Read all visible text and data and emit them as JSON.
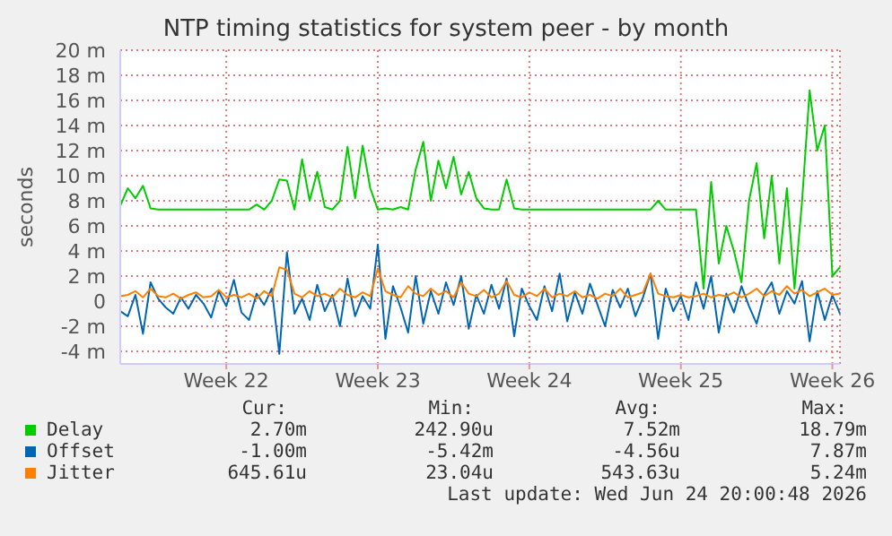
{
  "chart_data": {
    "type": "line",
    "title": "NTP timing statistics for system peer - by month",
    "ylabel": "seconds",
    "categories": [
      null,
      null,
      null,
      null,
      null,
      null,
      null,
      null,
      null,
      null,
      null,
      null,
      null,
      null,
      "Week 22",
      null,
      null,
      null,
      null,
      null,
      null,
      null,
      null,
      null,
      null,
      null,
      null,
      null,
      null,
      null,
      null,
      null,
      null,
      null,
      "Week 23",
      null,
      null,
      null,
      null,
      null,
      null,
      null,
      null,
      null,
      null,
      null,
      null,
      null,
      null,
      null,
      null,
      null,
      null,
      null,
      "Week 24",
      null,
      null,
      null,
      null,
      null,
      null,
      null,
      null,
      null,
      null,
      null,
      null,
      null,
      null,
      null,
      null,
      null,
      null,
      null,
      "Week 25",
      null,
      null,
      null,
      null,
      null,
      null,
      null,
      null,
      null,
      null,
      null,
      null,
      null,
      null,
      null,
      null,
      null,
      null,
      null,
      "Week 26",
      null
    ],
    "series": [
      {
        "name": "Delay",
        "color": "#00cc00",
        "values": [
          7.6,
          9.0,
          8.2,
          9.2,
          7.4,
          7.3,
          7.3,
          7.3,
          7.3,
          7.3,
          7.3,
          7.3,
          7.3,
          7.3,
          7.3,
          7.3,
          7.3,
          7.3,
          7.7,
          7.3,
          8.0,
          9.7,
          9.6,
          7.3,
          11.3,
          8.0,
          10.3,
          7.5,
          7.3,
          8.0,
          12.3,
          8.2,
          12.4,
          9.0,
          7.3,
          7.4,
          7.3,
          7.5,
          7.3,
          10.5,
          12.7,
          8.0,
          11.2,
          9.0,
          11.5,
          8.5,
          10.3,
          8.2,
          7.4,
          7.3,
          7.3,
          9.7,
          7.4,
          7.3,
          7.3,
          7.3,
          7.3,
          7.3,
          7.3,
          7.3,
          7.3,
          7.3,
          7.3,
          7.3,
          7.3,
          7.3,
          7.3,
          7.3,
          7.3,
          7.3,
          7.3,
          8.0,
          7.3,
          7.3,
          7.3,
          7.3,
          7.3,
          1.0,
          9.5,
          3.0,
          6.0,
          4.0,
          1.5,
          8.0,
          11.0,
          5.0,
          10.0,
          3.0,
          9.0,
          1.0,
          8.0,
          16.8,
          12.0,
          14.0,
          2.0,
          2.7
        ]
      },
      {
        "name": "Offset",
        "color": "#0066b3",
        "values": [
          -0.8,
          -1.2,
          0.5,
          -2.6,
          1.5,
          0.2,
          -0.5,
          -1.0,
          0.3,
          -0.6,
          0.5,
          -0.2,
          -1.3,
          0.8,
          -0.4,
          1.7,
          -0.9,
          -1.5,
          0.6,
          -0.3,
          1.0,
          -4.2,
          3.9,
          -1.0,
          0.2,
          -1.5,
          1.3,
          -0.8,
          0.5,
          -2.0,
          1.8,
          -1.2,
          0.4,
          -0.6,
          4.5,
          -3.0,
          1.2,
          -0.5,
          -2.5,
          2.0,
          -1.8,
          0.8,
          -1.0,
          1.5,
          -0.3,
          2.0,
          -2.2,
          0.5,
          -1.0,
          1.3,
          -0.6,
          1.8,
          -2.8,
          1.0,
          -0.4,
          -1.5,
          1.2,
          -0.8,
          2.2,
          -1.6,
          0.7,
          -1.0,
          1.4,
          -0.3,
          -2.0,
          0.9,
          -0.5,
          1.0,
          -1.2,
          0.3,
          2.2,
          -3.0,
          1.0,
          -0.8,
          0.4,
          -1.5,
          1.5,
          -0.6,
          2.0,
          -2.5,
          0.6,
          -0.9,
          1.2,
          -0.4,
          -1.8,
          0.5,
          1.5,
          -1.0,
          0.8,
          -0.2,
          1.6,
          -3.2,
          0.8,
          -1.5,
          0.5,
          -1.0
        ]
      },
      {
        "name": "Jitter",
        "color": "#ff8000",
        "values": [
          0.4,
          0.5,
          0.8,
          0.3,
          1.0,
          0.4,
          0.3,
          0.6,
          0.2,
          0.5,
          0.7,
          0.3,
          0.4,
          0.9,
          0.3,
          0.5,
          0.3,
          0.6,
          0.2,
          0.8,
          0.4,
          2.7,
          2.5,
          0.6,
          0.3,
          0.8,
          0.4,
          0.6,
          0.3,
          1.0,
          0.5,
          0.3,
          0.7,
          0.4,
          2.6,
          0.8,
          0.5,
          0.3,
          1.2,
          0.6,
          0.4,
          1.0,
          0.5,
          0.8,
          0.3,
          1.5,
          0.6,
          0.4,
          0.9,
          0.3,
          0.6,
          1.6,
          0.5,
          0.3,
          0.7,
          0.4,
          1.0,
          0.3,
          0.6,
          0.4,
          0.8,
          0.3,
          0.5,
          0.2,
          0.6,
          0.4,
          1.0,
          0.3,
          0.5,
          0.7,
          2.2,
          0.6,
          0.4,
          0.3,
          0.5,
          0.3,
          0.4,
          0.6,
          0.3,
          0.5,
          0.4,
          0.7,
          0.3,
          0.6,
          1.0,
          0.4,
          0.8,
          0.5,
          1.2,
          0.6,
          0.9,
          0.4,
          0.7,
          1.0,
          0.5,
          0.6
        ]
      }
    ],
    "ylim": [
      -5,
      20
    ],
    "yticks": [
      {
        "value": -4,
        "label": "-4 m"
      },
      {
        "value": -2,
        "label": "-2 m"
      },
      0,
      {
        "value": 2,
        "label": "2 m"
      },
      {
        "value": 4,
        "label": "4 m"
      },
      {
        "value": 6,
        "label": "6 m"
      },
      {
        "value": 8,
        "label": "8 m"
      },
      {
        "value": 10,
        "label": "10 m"
      },
      {
        "value": 12,
        "label": "12 m"
      },
      {
        "value": 14,
        "label": "14 m"
      },
      {
        "value": 16,
        "label": "16 m"
      },
      {
        "value": 18,
        "label": "18 m"
      },
      {
        "value": 20,
        "label": "20 m"
      }
    ],
    "grid": true,
    "legend": "bottom",
    "marker": "none",
    "line_style": "solid",
    "annotations": [
      "Cur:",
      "Min:",
      "Avg:",
      "Max:",
      "2.70m",
      "242.90u",
      "7.52m",
      "18.79m",
      "-1.00m",
      "-5.42m",
      "-4.56u",
      "7.87m",
      "645.61u",
      "23.04u",
      "543.63u",
      "5.24m",
      "Last update: Wed Jun 24 20:00:48 2026"
    ]
  }
}
